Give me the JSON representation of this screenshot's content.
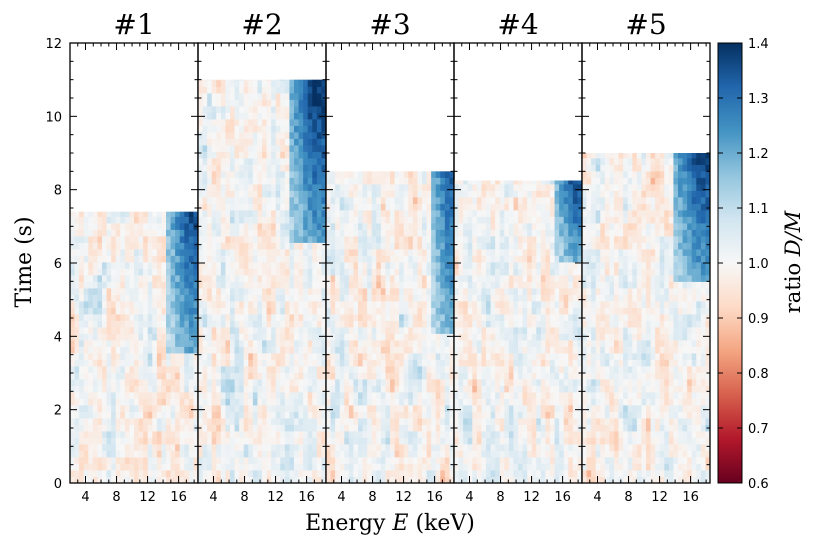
{
  "chart_data": {
    "type": "heatmap",
    "panels": [
      {
        "title": "#1",
        "t_max": 7.4,
        "hot_band": {
          "e_start": 14.5,
          "t_range": [
            3.5,
            7.4
          ],
          "peak": 1.36
        }
      },
      {
        "title": "#2",
        "t_max": 11.0,
        "hot_band": {
          "e_start": 13.5,
          "t_range": [
            6.5,
            11.0
          ],
          "peak": 1.4
        }
      },
      {
        "title": "#3",
        "t_max": 8.5,
        "hot_band": {
          "e_start": 15.5,
          "t_range": [
            4.0,
            8.5
          ],
          "peak": 1.33
        }
      },
      {
        "title": "#4",
        "t_max": 8.25,
        "hot_band": {
          "e_start": 15.0,
          "t_range": [
            6.0,
            8.25
          ],
          "peak": 1.36
        }
      },
      {
        "title": "#5",
        "t_max": 9.0,
        "hot_band": {
          "e_start": 13.5,
          "t_range": [
            5.5,
            9.0
          ],
          "peak": 1.38
        }
      }
    ],
    "x_ticks": [
      "4",
      "8",
      "12",
      "16"
    ],
    "x_tick_values": [
      4,
      8,
      12,
      16
    ],
    "xlim": [
      2,
      18.5
    ],
    "ylim": [
      0,
      12
    ],
    "y_ticks": [
      "0",
      "2",
      "4",
      "6",
      "8",
      "10",
      "12"
    ],
    "y_tick_values": [
      0,
      2,
      4,
      6,
      8,
      10,
      12
    ],
    "xlabel_prefix": "Energy ",
    "xlabel_var": "E",
    "xlabel_suffix": " (keV)",
    "ylabel": "Time (s)",
    "colorbar": {
      "label_prefix": "ratio ",
      "label_math": "D/M",
      "min": 0.6,
      "max": 1.4,
      "ticks": [
        "0.6",
        "0.7",
        "0.8",
        "0.9",
        "1.0",
        "1.1",
        "1.2",
        "1.3",
        "1.4"
      ],
      "tick_values": [
        0.6,
        0.7,
        0.8,
        0.9,
        1.0,
        1.1,
        1.2,
        1.3,
        1.4
      ],
      "colormap": "RdBu",
      "stops": [
        "#67001f",
        "#b2182b",
        "#d6604d",
        "#f4a582",
        "#fddbc7",
        "#f7f7f7",
        "#d1e5f0",
        "#92c5de",
        "#4393c3",
        "#2166ac",
        "#053061"
      ]
    }
  }
}
